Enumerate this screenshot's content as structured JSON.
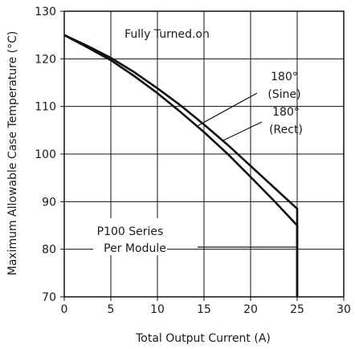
{
  "chart_data": {
    "type": "line",
    "title": "",
    "xlabel": "Total Output Current (A)",
    "ylabel": "Maximum Allowable Case Temperature (°C)",
    "xlim": [
      0,
      30
    ],
    "ylim": [
      70,
      130
    ],
    "x_ticks": [
      "0",
      "5",
      "10",
      "15",
      "20",
      "25",
      "30"
    ],
    "y_ticks": [
      "70",
      "80",
      "90",
      "100",
      "110",
      "120",
      "130"
    ],
    "grid": true,
    "legend": "none",
    "colors": {
      "line": "#111111",
      "grid": "#111111"
    },
    "annotations": {
      "top": "Fully Turned.on",
      "sine_line1": "180°",
      "sine_line2": "(Sine)",
      "rect_line1": "180°",
      "rect_line2": "(Rect)",
      "series_line1": "P100 Series",
      "series_line2": "Per Module"
    },
    "series": [
      {
        "name": "180° (Sine)",
        "x": [
          0,
          2.5,
          5,
          7.5,
          10,
          12.5,
          15,
          17.5,
          20,
          22.5,
          25,
          25,
          25
        ],
        "y": [
          125,
          122.7,
          120.2,
          117.2,
          113.8,
          110.2,
          106.2,
          102,
          97.5,
          93,
          88.5,
          84.5,
          70
        ]
      },
      {
        "name": "180° (Rect)",
        "x": [
          0,
          2.5,
          5,
          7.5,
          10,
          12.5,
          15,
          17.5,
          20,
          22.5,
          25,
          25
        ],
        "y": [
          125,
          122.4,
          119.7,
          116.4,
          112.8,
          108.8,
          104.6,
          100.1,
          95.2,
          90.2,
          85,
          70
        ]
      }
    ]
  }
}
